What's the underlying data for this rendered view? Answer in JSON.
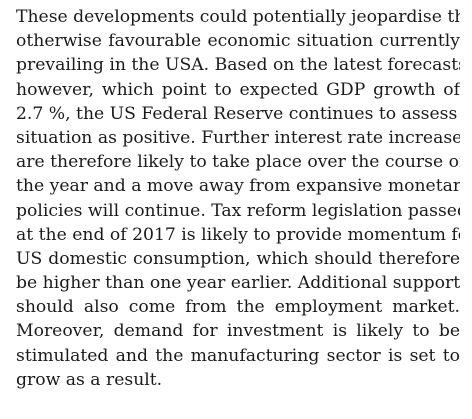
{
  "document": {
    "paragraph_lines": [
      "These developments could potentially jeopardise the",
      "otherwise favourable economic situation currently",
      "prevailing in the USA. Based on the latest forecasts,",
      "however, which point to expected GDP growth of",
      "2.7 %, the US Federal Reserve continues to assess the",
      "situation as positive. Further interest rate increases",
      "are therefore likely to take place over the course of",
      "the year and a move away from expansive monetary",
      "policies will continue. Tax reform legislation passed",
      "at the end of 2017 is likely to provide momentum for",
      "US domestic consumption, which should therefore",
      "be higher than one year earlier. Additional support",
      "should also come from the employment market.",
      "Moreover, demand for investment is likely to be",
      "stimulated and the manufacturing sector is set to",
      "grow as a result."
    ]
  },
  "colors": {
    "text": "#1a1a1a",
    "background": "#ffffff"
  }
}
